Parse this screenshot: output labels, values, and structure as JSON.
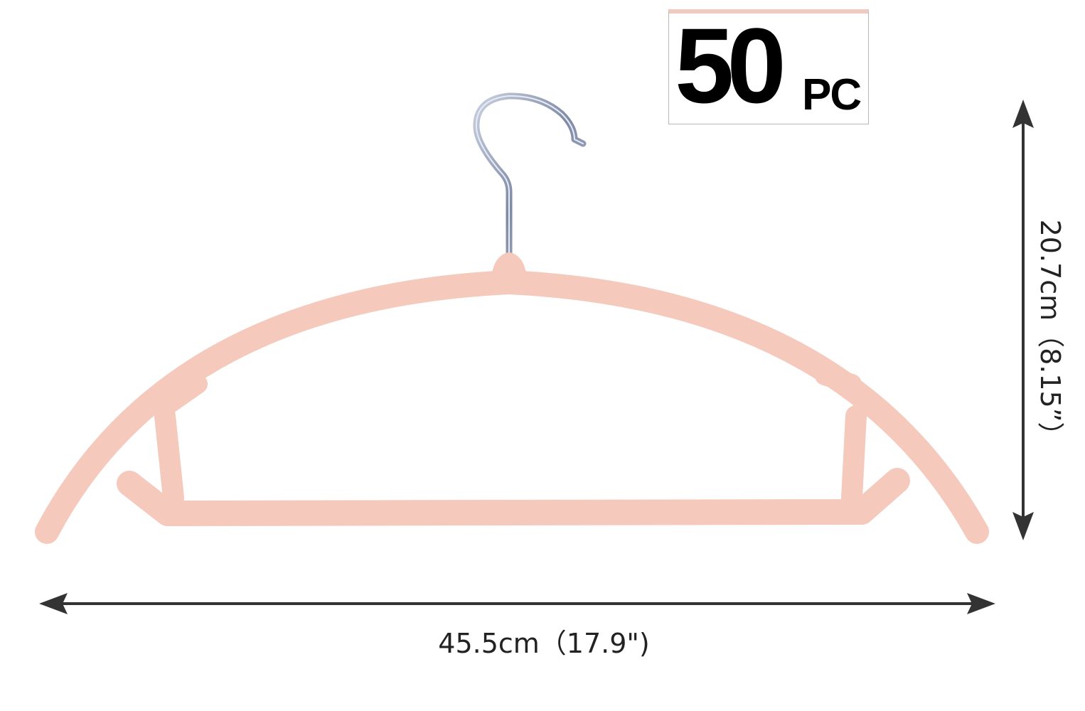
{
  "badge": {
    "number": "50",
    "unit": "PC"
  },
  "dimensions": {
    "width_label": "45.5cm（17.9\")",
    "height_label": "20.7cm（8.15”）"
  },
  "colors": {
    "hanger": "#f5c9bc",
    "hook": "#9aa3b8",
    "arrow": "#333333",
    "text": "#222222",
    "badge_accent": "#f2c9bf"
  },
  "icons": {
    "hanger": "clothes-hanger-icon",
    "width_arrow": "double-arrow-horizontal-icon",
    "height_arrow": "double-arrow-vertical-icon"
  }
}
